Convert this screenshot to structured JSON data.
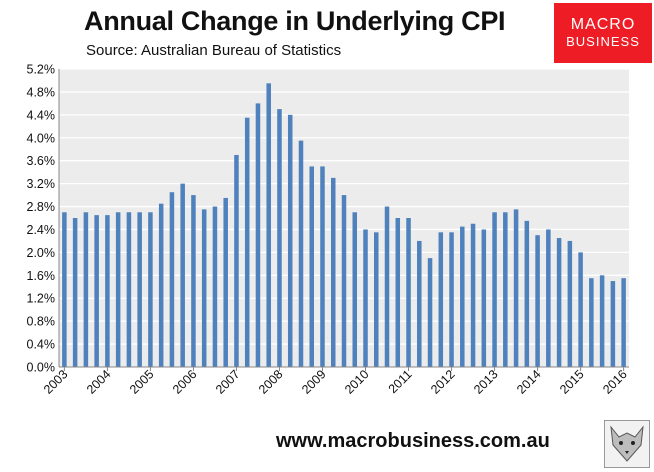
{
  "header": {
    "title": "Annual Change in Underlying CPI",
    "subtitle": "Source: Australian Bureau of Statistics"
  },
  "logo": {
    "line1": "MACRO",
    "line2": "BUSINESS",
    "color": "#ee1c25"
  },
  "footer": {
    "url": "www.macrobusiness.com.au"
  },
  "colors": {
    "bar": "#4f81bd",
    "plot_bg": "#ececec",
    "grid": "#ffffff"
  },
  "chart_data": {
    "type": "bar",
    "title": "Annual Change in Underlying CPI",
    "subtitle": "Source: Australian Bureau of Statistics",
    "xlabel": "",
    "ylabel": "",
    "ylim": [
      0,
      5.2
    ],
    "y_ticks": [
      "0.0%",
      "0.4%",
      "0.8%",
      "1.2%",
      "1.6%",
      "2.0%",
      "2.4%",
      "2.8%",
      "3.2%",
      "3.6%",
      "4.0%",
      "4.4%",
      "4.8%",
      "5.2%"
    ],
    "y_tick_values": [
      0,
      0.4,
      0.8,
      1.2,
      1.6,
      2.0,
      2.4,
      2.8,
      3.2,
      3.6,
      4.0,
      4.4,
      4.8,
      5.2
    ],
    "x_tick_labels": [
      "2003",
      "2004",
      "2005",
      "2006",
      "2007",
      "2008",
      "2009",
      "2010",
      "2011",
      "2012",
      "2013",
      "2014",
      "2015",
      "2016"
    ],
    "grid": true,
    "legend": "none",
    "series": [
      {
        "name": "Annual change in underlying CPI (%)",
        "frequency": "quarterly",
        "start": "2003",
        "values": [
          2.7,
          2.6,
          2.7,
          2.65,
          2.65,
          2.7,
          2.7,
          2.7,
          2.7,
          2.85,
          3.05,
          3.2,
          3.0,
          2.75,
          2.8,
          2.95,
          3.7,
          4.35,
          4.6,
          4.95,
          4.5,
          4.4,
          3.95,
          3.5,
          3.5,
          3.3,
          3.0,
          2.7,
          2.4,
          2.35,
          2.8,
          2.6,
          2.6,
          2.2,
          1.9,
          2.35,
          2.35,
          2.45,
          2.5,
          2.4,
          2.7,
          2.7,
          2.75,
          2.55,
          2.3,
          2.4,
          2.25,
          2.2,
          2.0,
          1.55,
          1.6,
          1.5,
          1.55
        ]
      }
    ]
  }
}
